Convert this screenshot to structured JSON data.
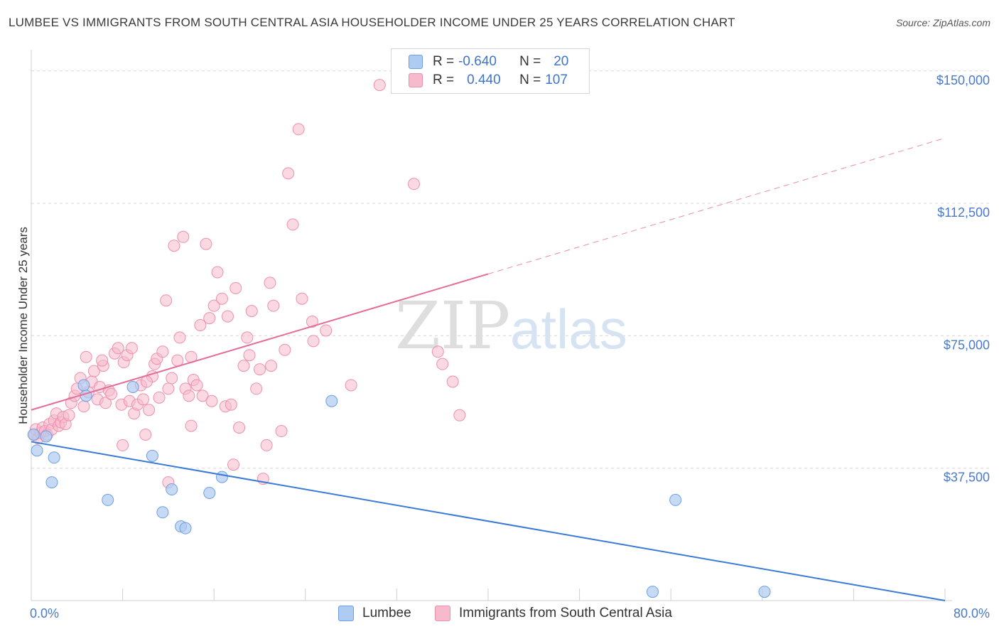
{
  "header": {
    "title": "LUMBEE VS IMMIGRANTS FROM SOUTH CENTRAL ASIA HOUSEHOLDER INCOME UNDER 25 YEARS CORRELATION CHART",
    "source": "Source: ZipAtlas.com"
  },
  "legend": {
    "lumbee": {
      "r_label": "R =",
      "r_value": "-0.640",
      "n_label": "N =",
      "n_value": "20"
    },
    "immigrants": {
      "r_label": "R =",
      "r_value": "0.440",
      "n_label": "N =",
      "n_value": "107"
    }
  },
  "bottom_legend": {
    "lumbee": "Lumbee",
    "immigrants": "Immigrants from South Central Asia"
  },
  "watermark": {
    "zip": "ZIP",
    "atlas": "atlas"
  },
  "colors": {
    "lumbee_fill": "#aecbf2",
    "lumbee_stroke": "#6f9fe0",
    "lumbee_line": "#3a7bd5",
    "imm_fill": "#f7b9cc",
    "imm_stroke": "#ee8fae",
    "imm_line": "#e46d98",
    "grid": "#d8d8d8",
    "tick_text": "#4a7ac9"
  },
  "chart_data": {
    "type": "scatter",
    "title": "LUMBEE VS IMMIGRANTS FROM SOUTH CENTRAL ASIA HOUSEHOLDER INCOME UNDER 25 YEARS CORRELATION CHART",
    "xlabel": "",
    "ylabel": "Householder Income Under 25 years",
    "xlim": [
      0,
      80
    ],
    "ylim": [
      0,
      156000
    ],
    "x_tick_labels": [
      "0.0%",
      "80.0%"
    ],
    "y_ticks": [
      37500,
      75000,
      112500,
      150000
    ],
    "y_tick_labels": [
      "$37,500",
      "$75,000",
      "$112,500",
      "$150,000"
    ],
    "grid": true,
    "series": [
      {
        "name": "Lumbee",
        "r": -0.64,
        "n": 20,
        "trend": {
          "x": [
            0,
            80
          ],
          "y": [
            45000,
            0
          ],
          "dashed_from": null
        },
        "points": [
          [
            0.2,
            47000
          ],
          [
            0.5,
            42500
          ],
          [
            1.3,
            46500
          ],
          [
            1.8,
            33500
          ],
          [
            2.0,
            40500
          ],
          [
            4.6,
            61000
          ],
          [
            4.8,
            58000
          ],
          [
            6.7,
            28500
          ],
          [
            8.9,
            60500
          ],
          [
            10.6,
            41000
          ],
          [
            11.5,
            25000
          ],
          [
            12.3,
            31500
          ],
          [
            13.1,
            21000
          ],
          [
            13.5,
            20500
          ],
          [
            15.6,
            30500
          ],
          [
            16.7,
            35000
          ],
          [
            26.3,
            56500
          ],
          [
            56.4,
            28500
          ],
          [
            54.4,
            2500
          ],
          [
            64.2,
            2500
          ]
        ]
      },
      {
        "name": "Immigrants from South Central Asia",
        "r": 0.44,
        "n": 107,
        "trend": {
          "x": [
            0,
            80
          ],
          "y": [
            54000,
            131000
          ],
          "dashed_from": 40
        },
        "points": [
          [
            0.3,
            47000
          ],
          [
            0.4,
            48500
          ],
          [
            0.6,
            46000
          ],
          [
            0.8,
            47500
          ],
          [
            1.0,
            49000
          ],
          [
            1.2,
            48000
          ],
          [
            1.4,
            47000
          ],
          [
            1.6,
            50000
          ],
          [
            1.8,
            48500
          ],
          [
            2.0,
            51000
          ],
          [
            2.2,
            53000
          ],
          [
            2.4,
            49500
          ],
          [
            2.6,
            50500
          ],
          [
            2.8,
            52000
          ],
          [
            3.0,
            50000
          ],
          [
            3.3,
            52500
          ],
          [
            3.5,
            56000
          ],
          [
            3.8,
            58000
          ],
          [
            4.0,
            60000
          ],
          [
            4.3,
            63000
          ],
          [
            4.6,
            55000
          ],
          [
            4.8,
            69000
          ],
          [
            5.0,
            59000
          ],
          [
            5.3,
            62000
          ],
          [
            5.5,
            65000
          ],
          [
            5.8,
            57000
          ],
          [
            6.0,
            60500
          ],
          [
            6.3,
            66500
          ],
          [
            6.5,
            56000
          ],
          [
            6.8,
            59500
          ],
          [
            7.0,
            58500
          ],
          [
            7.3,
            70000
          ],
          [
            7.6,
            71500
          ],
          [
            7.9,
            55500
          ],
          [
            8.1,
            67500
          ],
          [
            8.4,
            69500
          ],
          [
            8.6,
            56500
          ],
          [
            8.8,
            71500
          ],
          [
            9.0,
            53000
          ],
          [
            9.3,
            55500
          ],
          [
            9.6,
            61000
          ],
          [
            9.8,
            57000
          ],
          [
            10.0,
            47000
          ],
          [
            10.3,
            54000
          ],
          [
            10.6,
            63500
          ],
          [
            10.8,
            67000
          ],
          [
            11.0,
            68500
          ],
          [
            11.2,
            57500
          ],
          [
            11.5,
            70500
          ],
          [
            11.8,
            85000
          ],
          [
            12.0,
            60000
          ],
          [
            12.3,
            63000
          ],
          [
            12.5,
            100500
          ],
          [
            12.8,
            68000
          ],
          [
            13.0,
            74500
          ],
          [
            13.3,
            103000
          ],
          [
            13.5,
            60000
          ],
          [
            13.8,
            58000
          ],
          [
            14.0,
            49500
          ],
          [
            14.2,
            62500
          ],
          [
            14.5,
            61000
          ],
          [
            14.8,
            78000
          ],
          [
            15.0,
            58000
          ],
          [
            15.3,
            101000
          ],
          [
            15.6,
            80000
          ],
          [
            15.8,
            56500
          ],
          [
            16.0,
            83500
          ],
          [
            16.3,
            93000
          ],
          [
            16.7,
            85500
          ],
          [
            17.0,
            55000
          ],
          [
            17.2,
            80500
          ],
          [
            17.5,
            55500
          ],
          [
            17.7,
            38500
          ],
          [
            17.9,
            88500
          ],
          [
            18.2,
            49000
          ],
          [
            18.6,
            66500
          ],
          [
            18.9,
            74500
          ],
          [
            19.1,
            69500
          ],
          [
            19.3,
            82000
          ],
          [
            19.7,
            60000
          ],
          [
            20.0,
            65500
          ],
          [
            20.3,
            34500
          ],
          [
            20.6,
            44000
          ],
          [
            20.9,
            90000
          ],
          [
            21.0,
            66500
          ],
          [
            21.2,
            83500
          ],
          [
            21.9,
            48000
          ],
          [
            22.2,
            71000
          ],
          [
            22.5,
            121000
          ],
          [
            22.9,
            106500
          ],
          [
            23.4,
            133500
          ],
          [
            23.7,
            85500
          ],
          [
            24.6,
            79000
          ],
          [
            24.7,
            73500
          ],
          [
            25.8,
            76500
          ],
          [
            28.0,
            61000
          ],
          [
            30.5,
            146000
          ],
          [
            33.5,
            118000
          ],
          [
            35.6,
            70500
          ],
          [
            36.0,
            67000
          ],
          [
            36.9,
            62000
          ],
          [
            37.5,
            52500
          ],
          [
            6.2,
            68000
          ],
          [
            8.0,
            44000
          ],
          [
            10.1,
            62000
          ],
          [
            12.0,
            33500
          ],
          [
            14.0,
            69000
          ]
        ]
      }
    ]
  }
}
